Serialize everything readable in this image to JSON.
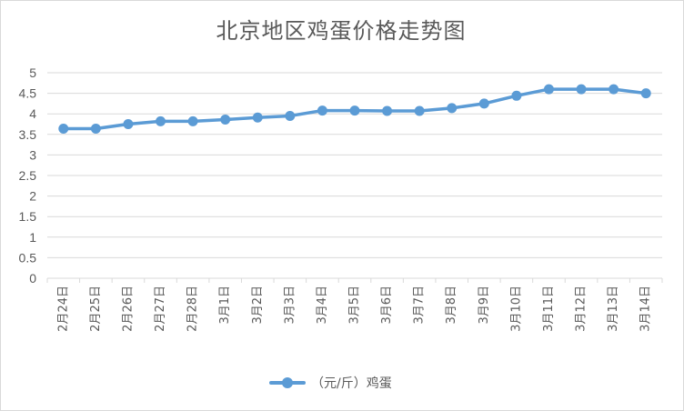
{
  "chart_data": {
    "type": "line",
    "title": "北京地区鸡蛋价格走势图",
    "categories": [
      "2月24日",
      "2月25日",
      "2月26日",
      "2月27日",
      "2月28日",
      "3月1日",
      "3月2日",
      "3月3日",
      "3月4日",
      "3月5日",
      "3月6日",
      "3月7日",
      "3月8日",
      "3月9日",
      "3月10日",
      "3月11日",
      "3月12日",
      "3月13日",
      "3月14日"
    ],
    "series": [
      {
        "name": "（元/斤）鸡蛋",
        "values": [
          3.64,
          3.64,
          3.75,
          3.82,
          3.82,
          3.86,
          3.91,
          3.95,
          4.08,
          4.08,
          4.07,
          4.07,
          4.14,
          4.25,
          4.44,
          4.6,
          4.6,
          4.6,
          4.5
        ]
      }
    ],
    "yticks": [
      "0",
      "0.5",
      "1",
      "1.5",
      "2",
      "2.5",
      "3",
      "3.5",
      "4",
      "4.5",
      "5"
    ],
    "ylim": [
      0,
      5
    ],
    "grid": true,
    "legend": "bottom",
    "colors": {
      "series": "#5b9bd5",
      "grid": "#d9d9d9",
      "text": "#595959"
    }
  }
}
